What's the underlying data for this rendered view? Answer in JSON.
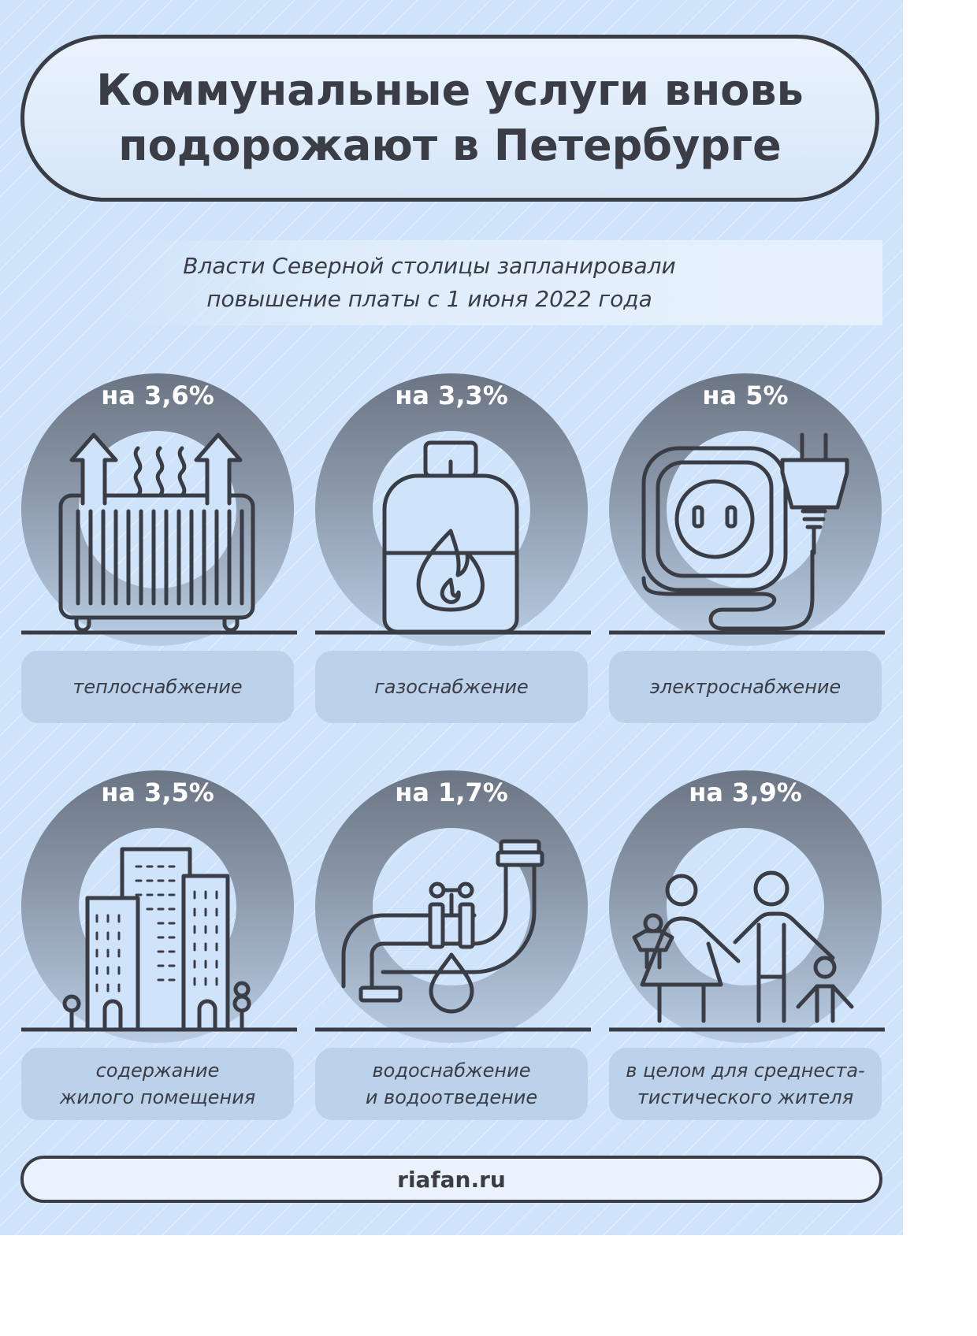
{
  "title": "Коммунальные услуги вновь\nподорожают в Петербурге",
  "subtitle": "Власти Северной столицы запланировали\nповышение платы с 1 июня 2022 года",
  "items": [
    {
      "percent": "на 3,6%",
      "label": "теплоснабжение",
      "icon": "radiator-icon"
    },
    {
      "percent": "на 3,3%",
      "label": "газоснабжение",
      "icon": "gas-cylinder-icon"
    },
    {
      "percent": "на 5%",
      "label": "электроснабжение",
      "icon": "socket-plug-icon"
    },
    {
      "percent": "на 3,5%",
      "label": "содержание\nжилого помещения",
      "icon": "buildings-icon"
    },
    {
      "percent": "на 1,7%",
      "label": "водоснабжение\nи водоотведение",
      "icon": "water-pipe-icon"
    },
    {
      "percent": "на 3,9%",
      "label": "в целом для среднеста-\nтистического жителя",
      "icon": "family-icon"
    }
  ],
  "footer": "riafan.ru",
  "colors": {
    "background": "#cfe3fa",
    "ink": "#3a3d45",
    "ring_top": "#6b7584",
    "label_box": "#bcd1ea"
  }
}
